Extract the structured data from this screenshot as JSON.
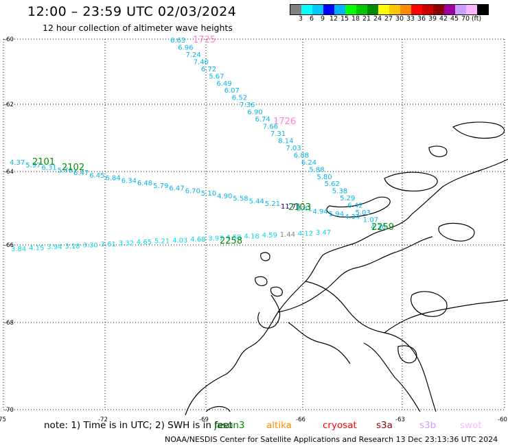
{
  "header": {
    "title": "12:00 – 23:59 UTC 02/03/2024",
    "subtitle": "12 hour collection of altimeter wave heights"
  },
  "legend": {
    "colors": [
      "#808080",
      "#00ffff",
      "#00c8ff",
      "#0000ff",
      "#00b0ff",
      "#00ff00",
      "#00c800",
      "#008c00",
      "#ffff00",
      "#ffc800",
      "#ff8c00",
      "#ff0000",
      "#c80000",
      "#8c0000",
      "#a000a0",
      "#c8a0ff",
      "#ffb4ff",
      "#000000"
    ],
    "labels": [
      "3",
      "6",
      "9",
      "12",
      "15",
      "18",
      "21",
      "24",
      "27",
      "30",
      "33",
      "36",
      "39",
      "42",
      "45",
      "70",
      "(ft)"
    ]
  },
  "axes": {
    "lat_labels": [
      "-60",
      "-62",
      "-64",
      "-66",
      "-68",
      "-70"
    ],
    "lon_labels": [
      "-75",
      "-72",
      "-69",
      "-66",
      "-63",
      "-60"
    ]
  },
  "passes": [
    {
      "time": "1725",
      "color": "#ff80d0"
    },
    {
      "time": "1726",
      "color": "#ff80d0"
    },
    {
      "time": "2101",
      "color": "#008c00"
    },
    {
      "time": "2102",
      "color": "#008c00"
    },
    {
      "time": "2103",
      "color": "#008c00"
    },
    {
      "time": "2259",
      "color": "#008c00"
    },
    {
      "time": "2258",
      "color": "#008c00"
    }
  ],
  "wave_heights": {
    "track_1725": [
      "6.63",
      "6.96",
      "7.24",
      "7.40",
      "6.72",
      "5.67",
      "6.49",
      "6.07",
      "6.52",
      "7.36",
      "6.90",
      "6.74",
      "7.66",
      "7.31",
      "8.14",
      "7.03",
      "6.88",
      "6.24",
      "5.88",
      "5.80",
      "5.62",
      "5.38",
      "5.29",
      "6.42",
      "5.03",
      "1.07",
      "4.36"
    ],
    "track_2101": [
      "4.37",
      "5.97",
      "6.31",
      "5.78",
      "6.47",
      "6.45",
      "6.84",
      "6.34",
      "6.48",
      "5.79",
      "6.47",
      "6.70",
      "5.10",
      "4.90",
      "5.58",
      "5.44",
      "5.21",
      "11.75",
      "5.41",
      "4.94",
      "5.94",
      "4.34"
    ],
    "track_2258": [
      "3.84",
      "4.15",
      "3.94",
      "3.18",
      "3.30",
      "3.61",
      "3.32",
      "4.65",
      "5.21",
      "4.03",
      "4.68",
      "3.97",
      "4.58",
      "4.18",
      "4.59",
      "1.44",
      "4.12",
      "3.47"
    ]
  },
  "footer": {
    "note": "note:  1) Time is in UTC; 2) SWH is in feet",
    "satellites": [
      {
        "name": "jason3",
        "color": "#008c00"
      },
      {
        "name": "altika",
        "color": "#ff8c00"
      },
      {
        "name": "cryosat",
        "color": "#ff0000"
      },
      {
        "name": "s3a",
        "color": "#8c0000"
      },
      {
        "name": "s3b",
        "color": "#c8a0ff"
      },
      {
        "name": "swot",
        "color": "#ffb4ff"
      }
    ],
    "credit": "NOAA/NESDIS Center for Satellite Applications and Research    13 Dec 23:13:36 UTC 2024"
  }
}
